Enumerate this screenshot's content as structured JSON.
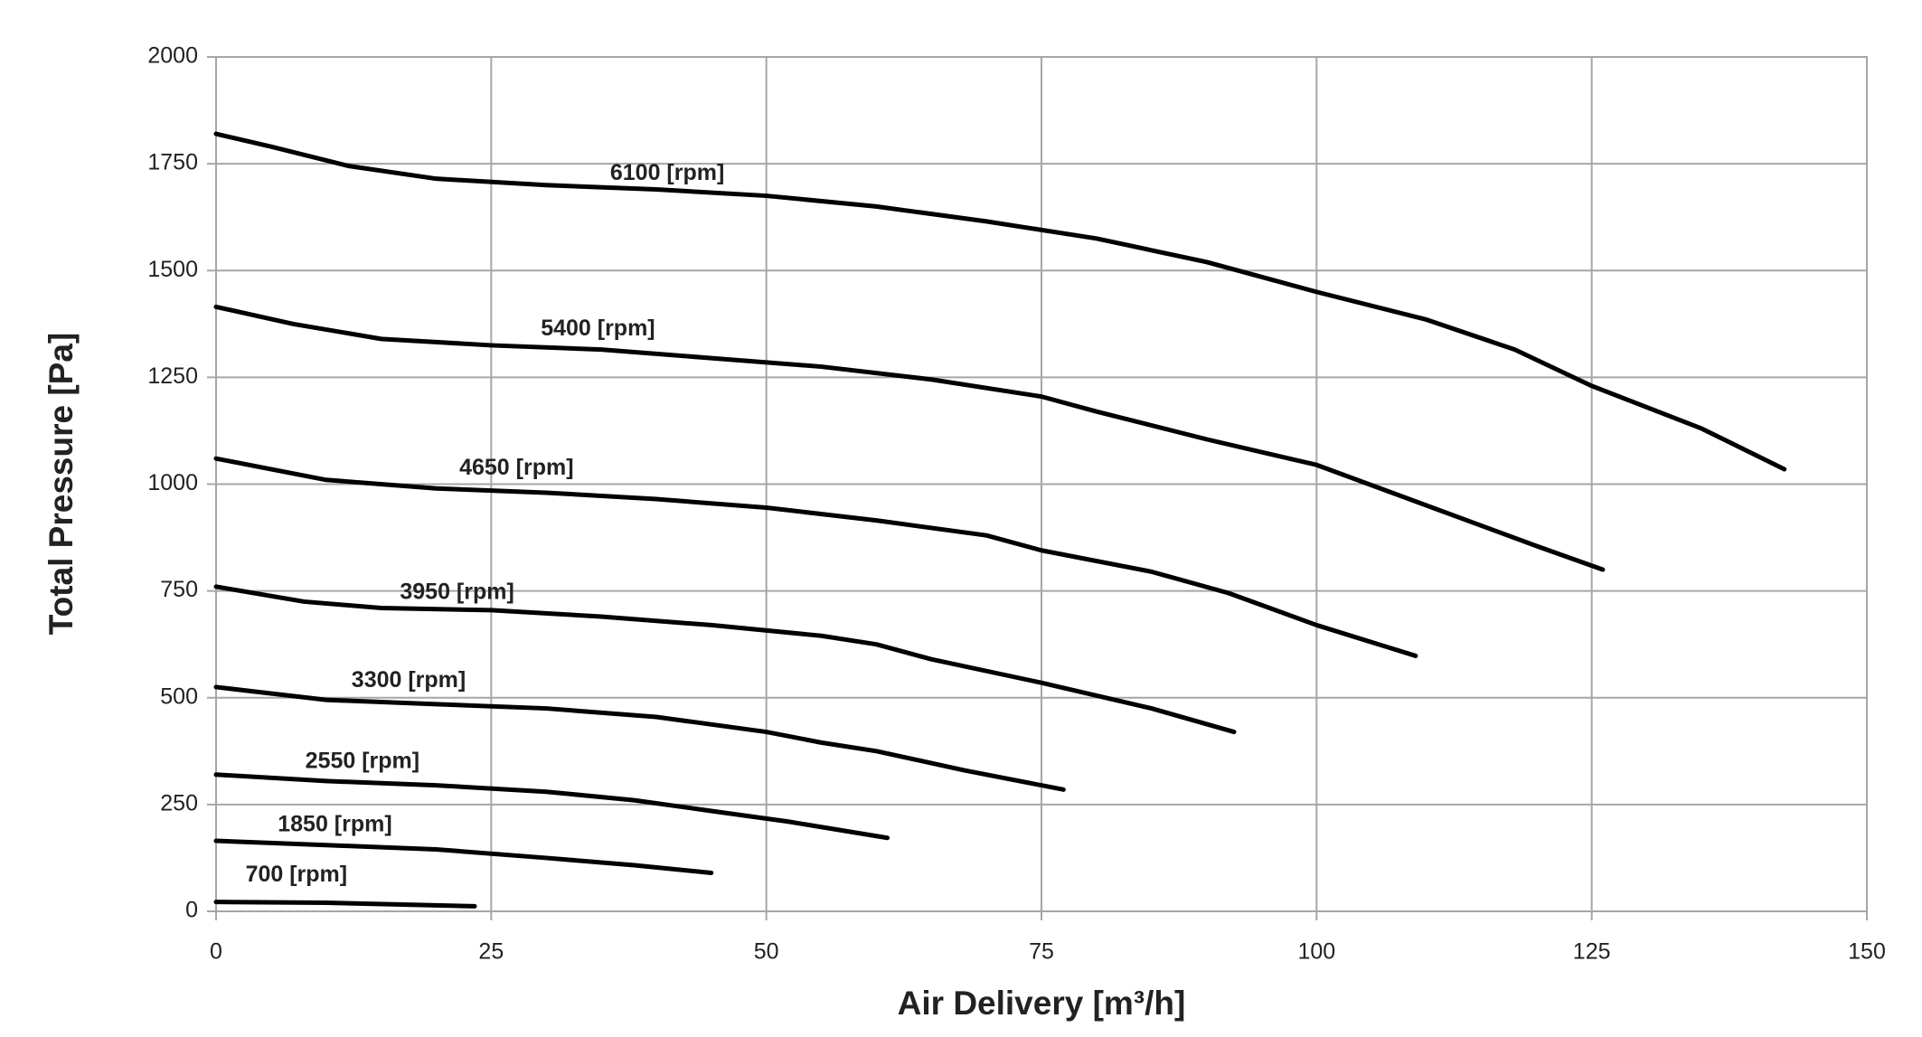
{
  "chart_data": {
    "type": "line",
    "xlabel": "Air Delivery [m³/h]",
    "ylabel": "Total Pressure [Pa]",
    "xlim": [
      0,
      150
    ],
    "xticks": [
      0,
      25,
      50,
      75,
      100,
      125,
      150
    ],
    "ylim": [
      0,
      2000
    ],
    "yticks": [
      0,
      250,
      500,
      750,
      1000,
      1250,
      1500,
      1750,
      2000
    ],
    "grid": true,
    "color": "#000000",
    "series": [
      {
        "name": "6100 [rpm]",
        "color": "#000000",
        "x": [
          0,
          5,
          12,
          20,
          30,
          40,
          50,
          60,
          70,
          80,
          90,
          100,
          110,
          118,
          125,
          135,
          142.5
        ],
        "values": [
          1820,
          1790,
          1745,
          1715,
          1700,
          1690,
          1675,
          1650,
          1615,
          1575,
          1520,
          1450,
          1385,
          1315,
          1230,
          1130,
          1035
        ]
      },
      {
        "name": "5400 [rpm]",
        "color": "#000000",
        "x": [
          0,
          7,
          15,
          25,
          35,
          45,
          55,
          65,
          75,
          80,
          90,
          100,
          110,
          120,
          126
        ],
        "values": [
          1415,
          1375,
          1340,
          1325,
          1315,
          1295,
          1275,
          1245,
          1205,
          1170,
          1105,
          1045,
          950,
          855,
          800
        ]
      },
      {
        "name": "4650 [rpm]",
        "color": "#000000",
        "x": [
          0,
          10,
          20,
          30,
          40,
          50,
          60,
          70,
          75,
          85,
          92,
          100,
          109
        ],
        "values": [
          1060,
          1010,
          990,
          980,
          965,
          945,
          915,
          880,
          845,
          795,
          745,
          670,
          598
        ]
      },
      {
        "name": "3950 [rpm]",
        "color": "#000000",
        "x": [
          0,
          8,
          15,
          25,
          35,
          45,
          55,
          60,
          65,
          75,
          85,
          92.5
        ],
        "values": [
          760,
          725,
          710,
          705,
          690,
          670,
          645,
          625,
          590,
          535,
          475,
          420
        ]
      },
      {
        "name": "3300 [rpm]",
        "color": "#000000",
        "x": [
          0,
          10,
          20,
          30,
          40,
          50,
          55,
          60,
          68,
          77
        ],
        "values": [
          525,
          495,
          485,
          475,
          455,
          420,
          395,
          375,
          330,
          285
        ]
      },
      {
        "name": "2550 [rpm]",
        "color": "#000000",
        "x": [
          0,
          10,
          20,
          30,
          38,
          45,
          52,
          61
        ],
        "values": [
          320,
          305,
          295,
          280,
          260,
          235,
          210,
          172
        ]
      },
      {
        "name": "1850 [rpm]",
        "color": "#000000",
        "x": [
          0,
          10,
          20,
          30,
          38,
          45
        ],
        "values": [
          165,
          155,
          145,
          125,
          108,
          90
        ]
      },
      {
        "name": "700 [rpm]",
        "color": "#000000",
        "x": [
          0,
          10,
          20,
          23.5
        ],
        "values": [
          22,
          20,
          14,
          12
        ]
      }
    ]
  }
}
